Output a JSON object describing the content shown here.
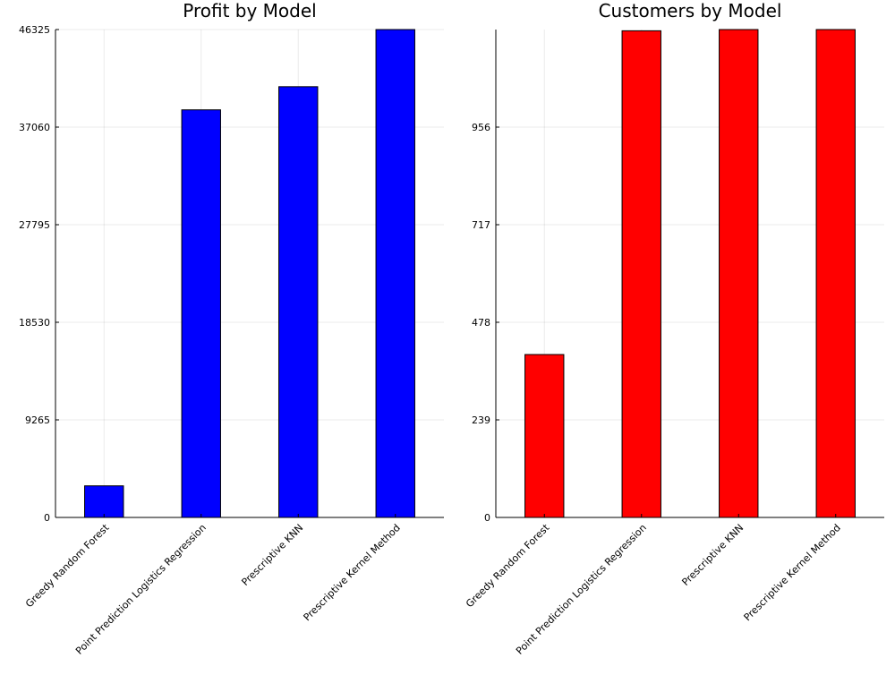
{
  "chart_data": [
    {
      "type": "bar",
      "title": "Profit by Model",
      "xlabel": "",
      "ylabel": "",
      "categories": [
        "Greedy Random Forest",
        "Point Prediction Logistics Regression",
        "Prescriptive KNN",
        "Prescriptive Kernel Method"
      ],
      "values": [
        3000,
        38700,
        40900,
        46325
      ],
      "yticks": [
        0,
        9265,
        18530,
        27795,
        37060,
        46325
      ],
      "ylim": [
        0,
        46325
      ],
      "grid": true,
      "legend": "none",
      "color": "#0000ff"
    },
    {
      "type": "bar",
      "title": "Customers by Model",
      "xlabel": "",
      "ylabel": "",
      "categories": [
        "Greedy Random Forest",
        "Point Prediction Logistics Regression",
        "Prescriptive KNN",
        "Prescriptive Kernel Method"
      ],
      "values": [
        399,
        1192,
        1195,
        1195
      ],
      "yticks": [
        0,
        239,
        478,
        717,
        956
      ],
      "ylim": [
        0,
        1195
      ],
      "grid": true,
      "legend": "none",
      "color": "#ff0000"
    }
  ]
}
